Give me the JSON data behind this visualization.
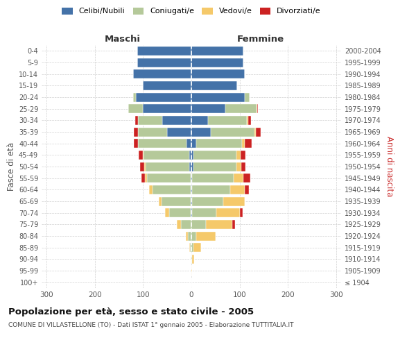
{
  "age_groups": [
    "100+",
    "95-99",
    "90-94",
    "85-89",
    "80-84",
    "75-79",
    "70-74",
    "65-69",
    "60-64",
    "55-59",
    "50-54",
    "45-49",
    "40-44",
    "35-39",
    "30-34",
    "25-29",
    "20-24",
    "15-19",
    "10-14",
    "5-9",
    "0-4"
  ],
  "year_labels": [
    "≤ 1904",
    "1905-1909",
    "1910-1914",
    "1915-1919",
    "1920-1924",
    "1925-1929",
    "1930-1934",
    "1935-1939",
    "1940-1944",
    "1945-1949",
    "1950-1954",
    "1955-1959",
    "1960-1964",
    "1965-1969",
    "1970-1974",
    "1975-1979",
    "1980-1984",
    "1985-1989",
    "1990-1994",
    "1995-1999",
    "2000-2004"
  ],
  "males": {
    "celibi": [
      0,
      0,
      0,
      0,
      0,
      0,
      1,
      1,
      1,
      2,
      5,
      4,
      10,
      50,
      60,
      100,
      115,
      100,
      120,
      112,
      112
    ],
    "coniugati": [
      0,
      0,
      1,
      3,
      7,
      22,
      45,
      60,
      80,
      90,
      90,
      95,
      100,
      60,
      50,
      30,
      5,
      0,
      0,
      0,
      0
    ],
    "vedovi": [
      0,
      0,
      0,
      2,
      5,
      8,
      8,
      7,
      6,
      4,
      3,
      2,
      1,
      1,
      0,
      0,
      0,
      0,
      0,
      0,
      0
    ],
    "divorziati": [
      0,
      0,
      0,
      0,
      0,
      0,
      0,
      0,
      0,
      8,
      8,
      8,
      8,
      8,
      6,
      1,
      0,
      0,
      0,
      0,
      0
    ]
  },
  "females": {
    "nubili": [
      0,
      0,
      0,
      0,
      0,
      0,
      1,
      1,
      1,
      2,
      4,
      4,
      10,
      40,
      35,
      70,
      110,
      95,
      110,
      108,
      108
    ],
    "coniugate": [
      0,
      0,
      1,
      5,
      10,
      30,
      50,
      65,
      80,
      85,
      90,
      90,
      95,
      90,
      80,
      65,
      10,
      0,
      0,
      0,
      0
    ],
    "vedove": [
      0,
      1,
      5,
      15,
      40,
      55,
      50,
      45,
      30,
      20,
      10,
      8,
      5,
      3,
      2,
      1,
      0,
      0,
      0,
      0,
      0
    ],
    "divorziate": [
      0,
      0,
      0,
      0,
      0,
      5,
      5,
      0,
      8,
      15,
      8,
      10,
      15,
      10,
      6,
      2,
      0,
      0,
      0,
      0,
      0
    ]
  },
  "colors": {
    "celibi": "#4472a8",
    "coniugati": "#b5c99a",
    "vedovi": "#f5c96a",
    "divorziati": "#cc2222"
  },
  "xlim": 310,
  "title": "Popolazione per età, sesso e stato civile - 2005",
  "subtitle": "COMUNE DI VILLASTELLONE (TO) - Dati ISTAT 1° gennaio 2005 - Elaborazione TUTTITALIA.IT",
  "xlabel_left": "Maschi",
  "xlabel_right": "Femmine",
  "ylabel_left": "Fasce di età",
  "ylabel_right": "Anni di nascita",
  "legend_labels": [
    "Celibi/Nubili",
    "Coniugati/e",
    "Vedovi/e",
    "Divorziati/e"
  ],
  "bg_color": "#ffffff",
  "grid_color": "#cccccc"
}
